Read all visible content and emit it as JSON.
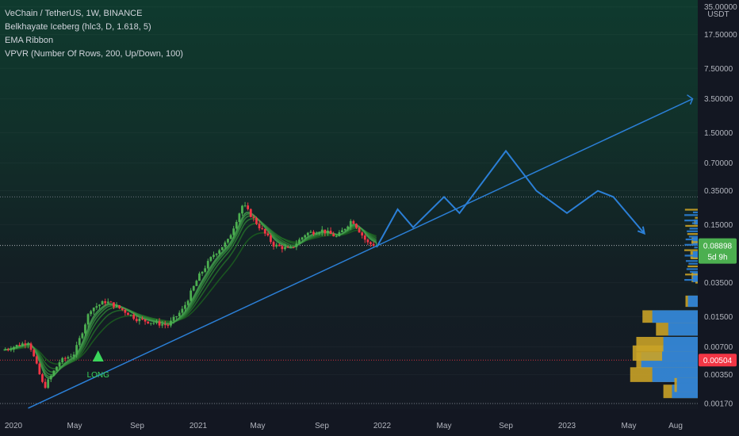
{
  "legend": {
    "symbol": "VeChain / TetherUS, 1W, BINANCE",
    "indicator1": "Belkhayate Iceberg (hlc3, D, 1.618, 5)",
    "indicator2": "EMA Ribbon",
    "indicator3": "VPVR (Number Of Rows, 200, Up/Down, 100)"
  },
  "price_axis": {
    "currency": "USDT",
    "labels": [
      "35.00000",
      "17.50000",
      "7.50000",
      "3.50000",
      "1.50000",
      "0.70000",
      "0.35000",
      "0.15000",
      "0.03500",
      "0.01500",
      "0.00700",
      "0.00350",
      "0.00170"
    ]
  },
  "badges": {
    "last_price": "0.08898",
    "countdown": "5d 9h",
    "marked_price": "0.00504"
  },
  "annotations": {
    "long_label": "LONG"
  },
  "colors": {
    "up": "#26a69a",
    "up_candle": "#4caf50",
    "down_candle": "#f23645",
    "projection": "#2b7fd6",
    "volume_up": "#2b7fd6",
    "volume_down": "#c9a227",
    "badge_green": "#4caf50",
    "badge_red": "#f23645"
  },
  "chart_data": {
    "type": "candlestick",
    "scale": "log",
    "ylim": [
      0.0016,
      40
    ],
    "x_ticks": [
      "2020",
      "May",
      "Sep",
      "2021",
      "May",
      "Sep",
      "2022",
      "May",
      "Sep",
      "2023",
      "May",
      "Aug"
    ],
    "price_path": [
      {
        "t": "2019-12",
        "price": 0.0065
      },
      {
        "t": "2020-02",
        "price": 0.008
      },
      {
        "t": "2020-03",
        "price": 0.0025
      },
      {
        "t": "2020-04",
        "price": 0.0048
      },
      {
        "t": "2020-05",
        "price": 0.006
      },
      {
        "t": "2020-06",
        "price": 0.018
      },
      {
        "t": "2020-07",
        "price": 0.022
      },
      {
        "t": "2020-08",
        "price": 0.018
      },
      {
        "t": "2020-09",
        "price": 0.014
      },
      {
        "t": "2020-11",
        "price": 0.012
      },
      {
        "t": "2020-12",
        "price": 0.018
      },
      {
        "t": "2021-01",
        "price": 0.04
      },
      {
        "t": "2021-02",
        "price": 0.07
      },
      {
        "t": "2021-03",
        "price": 0.1
      },
      {
        "t": "2021-04",
        "price": 0.25
      },
      {
        "t": "2021-05",
        "price": 0.15
      },
      {
        "t": "2021-06",
        "price": 0.09
      },
      {
        "t": "2021-07",
        "price": 0.08
      },
      {
        "t": "2021-08",
        "price": 0.12
      },
      {
        "t": "2021-09",
        "price": 0.13
      },
      {
        "t": "2021-10",
        "price": 0.11
      },
      {
        "t": "2021-11",
        "price": 0.17
      },
      {
        "t": "2021-12",
        "price": 0.095
      },
      {
        "t": "2021-12-20",
        "price": 0.08898
      }
    ],
    "projection": [
      {
        "t": "2021-12-20",
        "price": 0.085
      },
      {
        "t": "2022-02",
        "price": 0.22
      },
      {
        "t": "2022-03",
        "price": 0.14
      },
      {
        "t": "2022-05",
        "price": 0.3
      },
      {
        "t": "2022-06",
        "price": 0.2
      },
      {
        "t": "2022-09",
        "price": 0.95
      },
      {
        "t": "2022-11",
        "price": 0.35
      },
      {
        "t": "2023-01",
        "price": 0.2
      },
      {
        "t": "2023-03",
        "price": 0.35
      },
      {
        "t": "2023-04",
        "price": 0.3
      },
      {
        "t": "2023-06",
        "price": 0.12
      }
    ],
    "trendline": [
      {
        "t": "2020-03",
        "price": 0.0017
      },
      {
        "t": "2023-09",
        "price": 3.5
      }
    ],
    "hlines": [
      0.3,
      0.08898,
      0.00504,
      0.0017
    ],
    "volume_profile": [
      {
        "price": 0.00504,
        "up": 0.5,
        "down": 0.46
      },
      {
        "price": 0.006,
        "up": 0.53,
        "down": 0.29
      },
      {
        "price": 0.0035,
        "up": 0.55,
        "down": 0.37
      },
      {
        "price": 0.0075,
        "up": 0.5,
        "down": 0.28
      },
      {
        "price": 0.0023,
        "up": 0.28,
        "down": 0.21
      },
      {
        "price": 0.0027,
        "up": 0.19,
        "down": 0.17
      },
      {
        "price": 0.011,
        "up": 0.34,
        "down": 0.24
      },
      {
        "price": 0.015,
        "up": 0.45,
        "down": 0.37
      },
      {
        "price": 0.022,
        "up": 0.1,
        "down": 0.08
      },
      {
        "price": 0.04,
        "up": 0.05,
        "down": 0.04
      },
      {
        "price": 0.07,
        "up": 0.06,
        "down": 0.04
      },
      {
        "price": 0.1,
        "up": 0.05,
        "down": 0.04
      },
      {
        "price": 0.16,
        "up": 0.03,
        "down": 0.02
      }
    ]
  }
}
